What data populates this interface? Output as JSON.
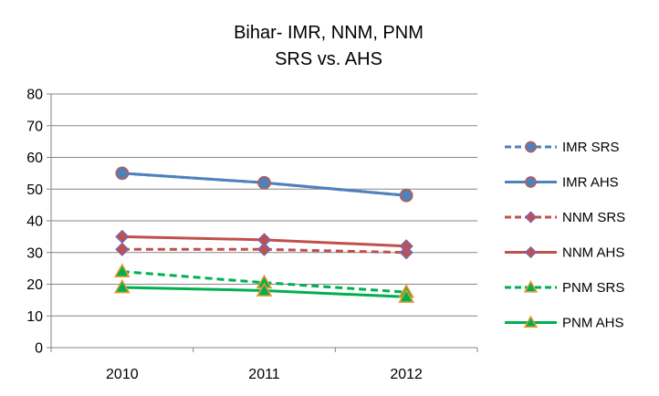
{
  "chart_data": {
    "type": "line",
    "title": "Bihar- IMR, NNM, PNM",
    "subtitle": "SRS vs. AHS",
    "categories": [
      "2010",
      "2011",
      "2012"
    ],
    "ylim": [
      0,
      80
    ],
    "yticks": [
      "0",
      "10",
      "20",
      "30",
      "40",
      "50",
      "60",
      "70",
      "80"
    ],
    "grid": "horizontal",
    "legend_position": "right",
    "series": [
      {
        "name": "IMR SRS",
        "values": [
          55,
          52,
          48
        ],
        "color": "#4f81bd",
        "dash": "dashed",
        "marker": "circle"
      },
      {
        "name": "IMR AHS",
        "values": [
          55,
          52,
          48
        ],
        "color": "#4f81bd",
        "dash": "solid",
        "marker": "circle"
      },
      {
        "name": "NNM SRS",
        "values": [
          31,
          31,
          30
        ],
        "color": "#c0504d",
        "dash": "dashed",
        "marker": "diamond"
      },
      {
        "name": "NNM AHS",
        "values": [
          35,
          34,
          32
        ],
        "color": "#c0504d",
        "dash": "solid",
        "marker": "diamond"
      },
      {
        "name": "PNM SRS",
        "values": [
          24,
          20.5,
          17.5
        ],
        "color": "#00b050",
        "dash": "dashed",
        "marker": "triangle"
      },
      {
        "name": "PNM AHS",
        "values": [
          19,
          18,
          16
        ],
        "color": "#00b050",
        "dash": "solid",
        "marker": "triangle"
      }
    ]
  }
}
